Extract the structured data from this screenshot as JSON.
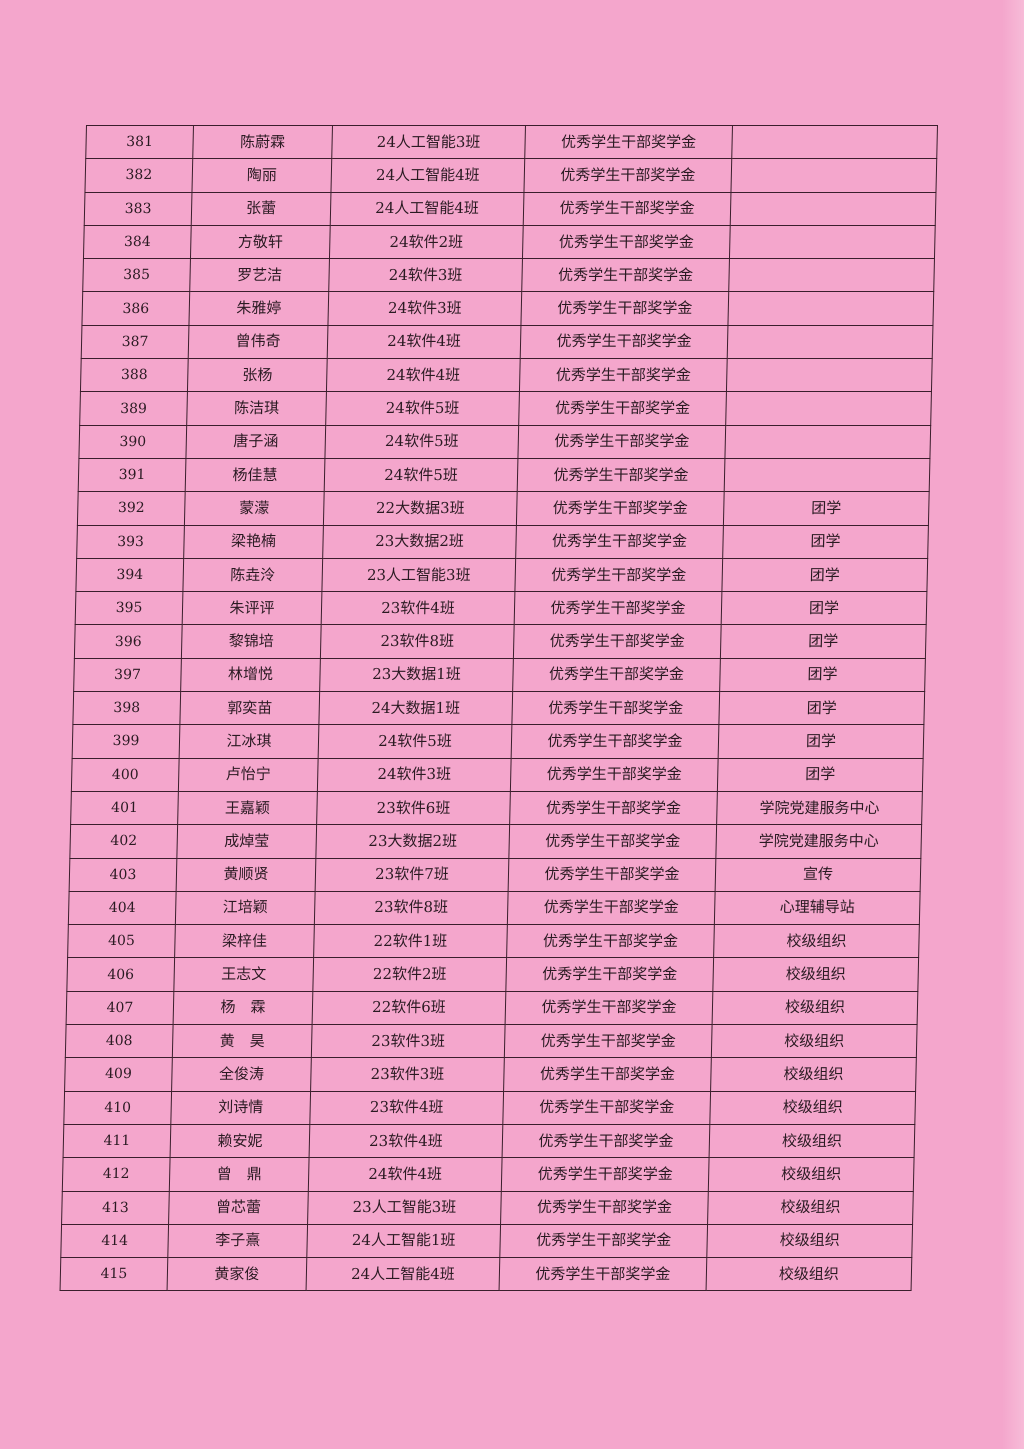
{
  "page_color": "#f4a6cc",
  "rows": [
    {
      "no": "381",
      "name": "陈蔚霖",
      "class": "24人工智能3班",
      "award": "优秀学生干部奖学金",
      "org": ""
    },
    {
      "no": "382",
      "name": "陶丽",
      "class": "24人工智能4班",
      "award": "优秀学生干部奖学金",
      "org": ""
    },
    {
      "no": "383",
      "name": "张蕾",
      "class": "24人工智能4班",
      "award": "优秀学生干部奖学金",
      "org": ""
    },
    {
      "no": "384",
      "name": "方敬轩",
      "class": "24软件2班",
      "award": "优秀学生干部奖学金",
      "org": ""
    },
    {
      "no": "385",
      "name": "罗艺洁",
      "class": "24软件3班",
      "award": "优秀学生干部奖学金",
      "org": ""
    },
    {
      "no": "386",
      "name": "朱雅婷",
      "class": "24软件3班",
      "award": "优秀学生干部奖学金",
      "org": ""
    },
    {
      "no": "387",
      "name": "曾伟奇",
      "class": "24软件4班",
      "award": "优秀学生干部奖学金",
      "org": ""
    },
    {
      "no": "388",
      "name": "张杨",
      "class": "24软件4班",
      "award": "优秀学生干部奖学金",
      "org": ""
    },
    {
      "no": "389",
      "name": "陈洁琪",
      "class": "24软件5班",
      "award": "优秀学生干部奖学金",
      "org": ""
    },
    {
      "no": "390",
      "name": "唐子涵",
      "class": "24软件5班",
      "award": "优秀学生干部奖学金",
      "org": ""
    },
    {
      "no": "391",
      "name": "杨佳慧",
      "class": "24软件5班",
      "award": "优秀学生干部奖学金",
      "org": ""
    },
    {
      "no": "392",
      "name": "蒙濛",
      "class": "22大数据3班",
      "award": "优秀学生干部奖学金",
      "org": "团学"
    },
    {
      "no": "393",
      "name": "梁艳楠",
      "class": "23大数据2班",
      "award": "优秀学生干部奖学金",
      "org": "团学"
    },
    {
      "no": "394",
      "name": "陈垚泠",
      "class": "23人工智能3班",
      "award": "优秀学生干部奖学金",
      "org": "团学"
    },
    {
      "no": "395",
      "name": "朱评评",
      "class": "23软件4班",
      "award": "优秀学生干部奖学金",
      "org": "团学"
    },
    {
      "no": "396",
      "name": "黎锦培",
      "class": "23软件8班",
      "award": "优秀学生干部奖学金",
      "org": "团学"
    },
    {
      "no": "397",
      "name": "林增悦",
      "class": "23大数据1班",
      "award": "优秀学生干部奖学金",
      "org": "团学"
    },
    {
      "no": "398",
      "name": "郭奕苗",
      "class": "24大数据1班",
      "award": "优秀学生干部奖学金",
      "org": "团学"
    },
    {
      "no": "399",
      "name": "江冰琪",
      "class": "24软件5班",
      "award": "优秀学生干部奖学金",
      "org": "团学"
    },
    {
      "no": "400",
      "name": "卢怡宁",
      "class": "24软件3班",
      "award": "优秀学生干部奖学金",
      "org": "团学"
    },
    {
      "no": "401",
      "name": "王嘉颖",
      "class": "23软件6班",
      "award": "优秀学生干部奖学金",
      "org": "学院党建服务中心"
    },
    {
      "no": "402",
      "name": "成焯莹",
      "class": "23大数据2班",
      "award": "优秀学生干部奖学金",
      "org": "学院党建服务中心"
    },
    {
      "no": "403",
      "name": "黄顺贤",
      "class": "23软件7班",
      "award": "优秀学生干部奖学金",
      "org": "宣传"
    },
    {
      "no": "404",
      "name": "江培颖",
      "class": "23软件8班",
      "award": "优秀学生干部奖学金",
      "org": "心理辅导站"
    },
    {
      "no": "405",
      "name": "梁梓佳",
      "class": "22软件1班",
      "award": "优秀学生干部奖学金",
      "org": "校级组织"
    },
    {
      "no": "406",
      "name": "王志文",
      "class": "22软件2班",
      "award": "优秀学生干部奖学金",
      "org": "校级组织"
    },
    {
      "no": "407",
      "name": "杨　霖",
      "class": "22软件6班",
      "award": "优秀学生干部奖学金",
      "org": "校级组织"
    },
    {
      "no": "408",
      "name": "黄　昊",
      "class": "23软件3班",
      "award": "优秀学生干部奖学金",
      "org": "校级组织"
    },
    {
      "no": "409",
      "name": "全俊涛",
      "class": "23软件3班",
      "award": "优秀学生干部奖学金",
      "org": "校级组织"
    },
    {
      "no": "410",
      "name": "刘诗情",
      "class": "23软件4班",
      "award": "优秀学生干部奖学金",
      "org": "校级组织"
    },
    {
      "no": "411",
      "name": "赖安妮",
      "class": "23软件4班",
      "award": "优秀学生干部奖学金",
      "org": "校级组织"
    },
    {
      "no": "412",
      "name": "曾　鼎",
      "class": "24软件4班",
      "award": "优秀学生干部奖学金",
      "org": "校级组织"
    },
    {
      "no": "413",
      "name": "曾芯蕾",
      "class": "23人工智能3班",
      "award": "优秀学生干部奖学金",
      "org": "校级组织"
    },
    {
      "no": "414",
      "name": "李子熹",
      "class": "24人工智能1班",
      "award": "优秀学生干部奖学金",
      "org": "校级组织"
    },
    {
      "no": "415",
      "name": "黄家俊",
      "class": "24人工智能4班",
      "award": "优秀学生干部奖学金",
      "org": "校级组织"
    }
  ]
}
